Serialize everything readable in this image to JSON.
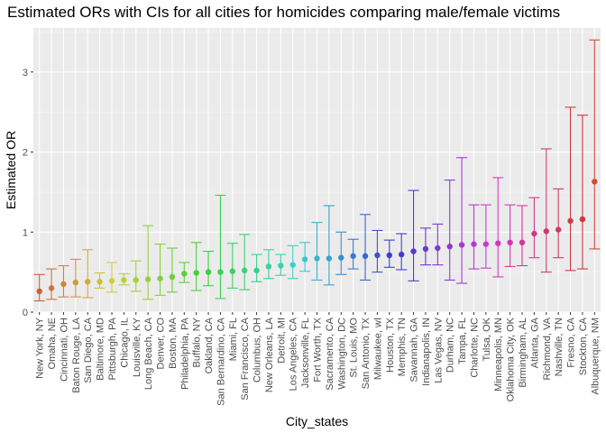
{
  "chart_data": {
    "type": "errorbar",
    "title": "Estimated ORs with CIs for all cities for homicides comparing male/female victims",
    "xlabel": "City_states",
    "ylabel": "Estimated OR",
    "ylim": [
      0,
      3.55
    ],
    "yticks": [
      0,
      1,
      2,
      3
    ],
    "grid": true,
    "legend": "none",
    "panel_color": "#ebebeb",
    "points": [
      {
        "city": "New York, NY",
        "or": 0.26,
        "lo": 0.14,
        "hi": 0.47
      },
      {
        "city": "Omaha, NE",
        "or": 0.3,
        "lo": 0.16,
        "hi": 0.54
      },
      {
        "city": "Cincinnati, OH",
        "or": 0.35,
        "lo": 0.19,
        "hi": 0.58
      },
      {
        "city": "Baton Rouge, LA",
        "or": 0.37,
        "lo": 0.19,
        "hi": 0.66
      },
      {
        "city": "San Diego, CA",
        "or": 0.38,
        "lo": 0.18,
        "hi": 0.78
      },
      {
        "city": "Baltimore, MD",
        "or": 0.38,
        "lo": 0.3,
        "hi": 0.49
      },
      {
        "city": "Pittsburgh, PA",
        "or": 0.39,
        "lo": 0.25,
        "hi": 0.62
      },
      {
        "city": "Chicago, IL",
        "or": 0.4,
        "lo": 0.34,
        "hi": 0.48
      },
      {
        "city": "Louisville, KY",
        "or": 0.4,
        "lo": 0.26,
        "hi": 0.64
      },
      {
        "city": "Long Beach, CA",
        "or": 0.41,
        "lo": 0.16,
        "hi": 1.08
      },
      {
        "city": "Denver, CO",
        "or": 0.42,
        "lo": 0.21,
        "hi": 0.85
      },
      {
        "city": "Boston, MA",
        "or": 0.44,
        "lo": 0.25,
        "hi": 0.8
      },
      {
        "city": "Philadelphia, PA",
        "or": 0.48,
        "lo": 0.37,
        "hi": 0.62
      },
      {
        "city": "Buffalo, NY",
        "or": 0.49,
        "lo": 0.27,
        "hi": 0.87
      },
      {
        "city": "Oakland, CA",
        "or": 0.5,
        "lo": 0.33,
        "hi": 0.76
      },
      {
        "city": "San Bernardino, CA",
        "or": 0.5,
        "lo": 0.17,
        "hi": 1.46
      },
      {
        "city": "Miami, FL",
        "or": 0.51,
        "lo": 0.3,
        "hi": 0.86
      },
      {
        "city": "San Francisco, CA",
        "or": 0.52,
        "lo": 0.28,
        "hi": 0.97
      },
      {
        "city": "Columbus, OH",
        "or": 0.52,
        "lo": 0.38,
        "hi": 0.72
      },
      {
        "city": "New Orleans, LA",
        "or": 0.57,
        "lo": 0.42,
        "hi": 0.78
      },
      {
        "city": "Detroit, MI",
        "or": 0.58,
        "lo": 0.46,
        "hi": 0.72
      },
      {
        "city": "Los Angeles, CA",
        "or": 0.59,
        "lo": 0.42,
        "hi": 0.83
      },
      {
        "city": "Jacksonville, FL",
        "or": 0.66,
        "lo": 0.51,
        "hi": 0.87
      },
      {
        "city": "Fort Worth, TX",
        "or": 0.67,
        "lo": 0.4,
        "hi": 1.12
      },
      {
        "city": "Sacramento, CA",
        "or": 0.67,
        "lo": 0.34,
        "hi": 1.33
      },
      {
        "city": "Washington, DC",
        "or": 0.68,
        "lo": 0.47,
        "hi": 1.0
      },
      {
        "city": "St. Louis, MO",
        "or": 0.7,
        "lo": 0.54,
        "hi": 0.91
      },
      {
        "city": "San Antonio, TX",
        "or": 0.7,
        "lo": 0.4,
        "hi": 1.22
      },
      {
        "city": "Milwaukee, wI",
        "or": 0.71,
        "lo": 0.5,
        "hi": 1.02
      },
      {
        "city": "Houston, TX",
        "or": 0.71,
        "lo": 0.56,
        "hi": 0.9
      },
      {
        "city": "Memphis, TN",
        "or": 0.72,
        "lo": 0.53,
        "hi": 0.98
      },
      {
        "city": "Savannah, GA",
        "or": 0.76,
        "lo": 0.39,
        "hi": 1.52
      },
      {
        "city": "Indianapolis, IN",
        "or": 0.79,
        "lo": 0.59,
        "hi": 1.05
      },
      {
        "city": "Las Vegas, NV",
        "or": 0.8,
        "lo": 0.59,
        "hi": 1.1
      },
      {
        "city": "Durham, NC",
        "or": 0.82,
        "lo": 0.4,
        "hi": 1.65
      },
      {
        "city": "Tampa, FL",
        "or": 0.84,
        "lo": 0.36,
        "hi": 1.93
      },
      {
        "city": "Charlotte, NC",
        "or": 0.85,
        "lo": 0.54,
        "hi": 1.34
      },
      {
        "city": "Tulsa, OK",
        "or": 0.85,
        "lo": 0.55,
        "hi": 1.34
      },
      {
        "city": "Minneapolis, MN",
        "or": 0.86,
        "lo": 0.44,
        "hi": 1.68
      },
      {
        "city": "Oklahoma City, OK",
        "or": 0.87,
        "lo": 0.57,
        "hi": 1.34
      },
      {
        "city": "Birmingham, AL",
        "or": 0.87,
        "lo": 0.58,
        "hi": 1.33
      },
      {
        "city": "Atlanta, GA",
        "or": 0.98,
        "lo": 0.68,
        "hi": 1.43
      },
      {
        "city": "Richmond, VA",
        "or": 1.01,
        "lo": 0.5,
        "hi": 2.04
      },
      {
        "city": "Nashville, TN",
        "or": 1.03,
        "lo": 0.68,
        "hi": 1.54
      },
      {
        "city": "Fresno, CA",
        "or": 1.14,
        "lo": 0.52,
        "hi": 2.56
      },
      {
        "city": "Stockton, CA",
        "or": 1.16,
        "lo": 0.54,
        "hi": 2.46
      },
      {
        "city": "Albuquerque, NM",
        "or": 1.63,
        "lo": 0.79,
        "hi": 3.4
      }
    ]
  }
}
